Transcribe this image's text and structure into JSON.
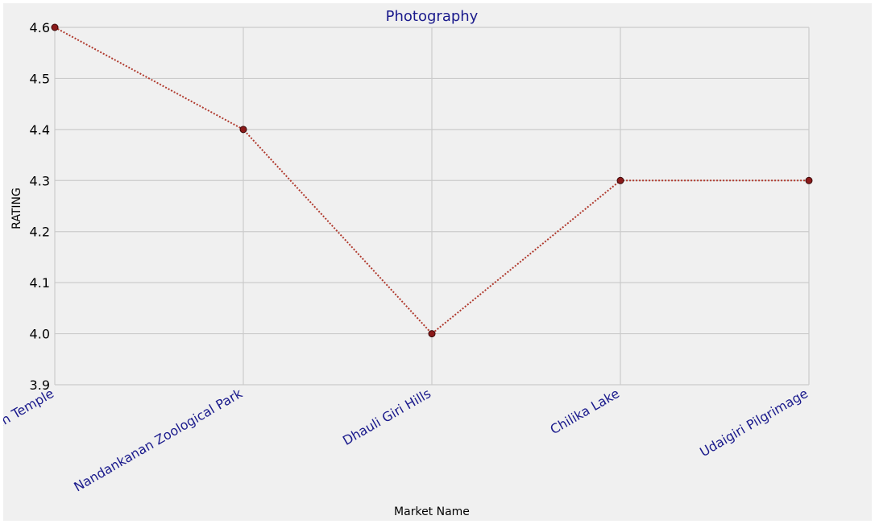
{
  "chart_data": {
    "type": "line",
    "title": "Photography",
    "xlabel": "Market Name",
    "ylabel": "RATING",
    "categories": [
      "Sun Temple",
      "Nandankanan Zoological Park",
      "Dhauli Giri Hills",
      "Chilika Lake",
      "Udaigiri Pilgrimage"
    ],
    "values": [
      4.6,
      4.4,
      4.0,
      4.3,
      4.3
    ],
    "ylim": [
      3.9,
      4.6
    ],
    "yticks": [
      "3.9",
      "4.0",
      "4.1",
      "4.2",
      "4.3",
      "4.4",
      "4.5",
      "4.6"
    ],
    "grid": true,
    "line_style": "dotted",
    "colors": {
      "line": "#b03a2e",
      "marker": "#8b1a1a",
      "marker_edge": "#3a0a0a",
      "title": "#1a1a8c",
      "xtick": "#1a1a8c",
      "grid": "#cbcbcb",
      "background": "#f0f0f0"
    }
  }
}
